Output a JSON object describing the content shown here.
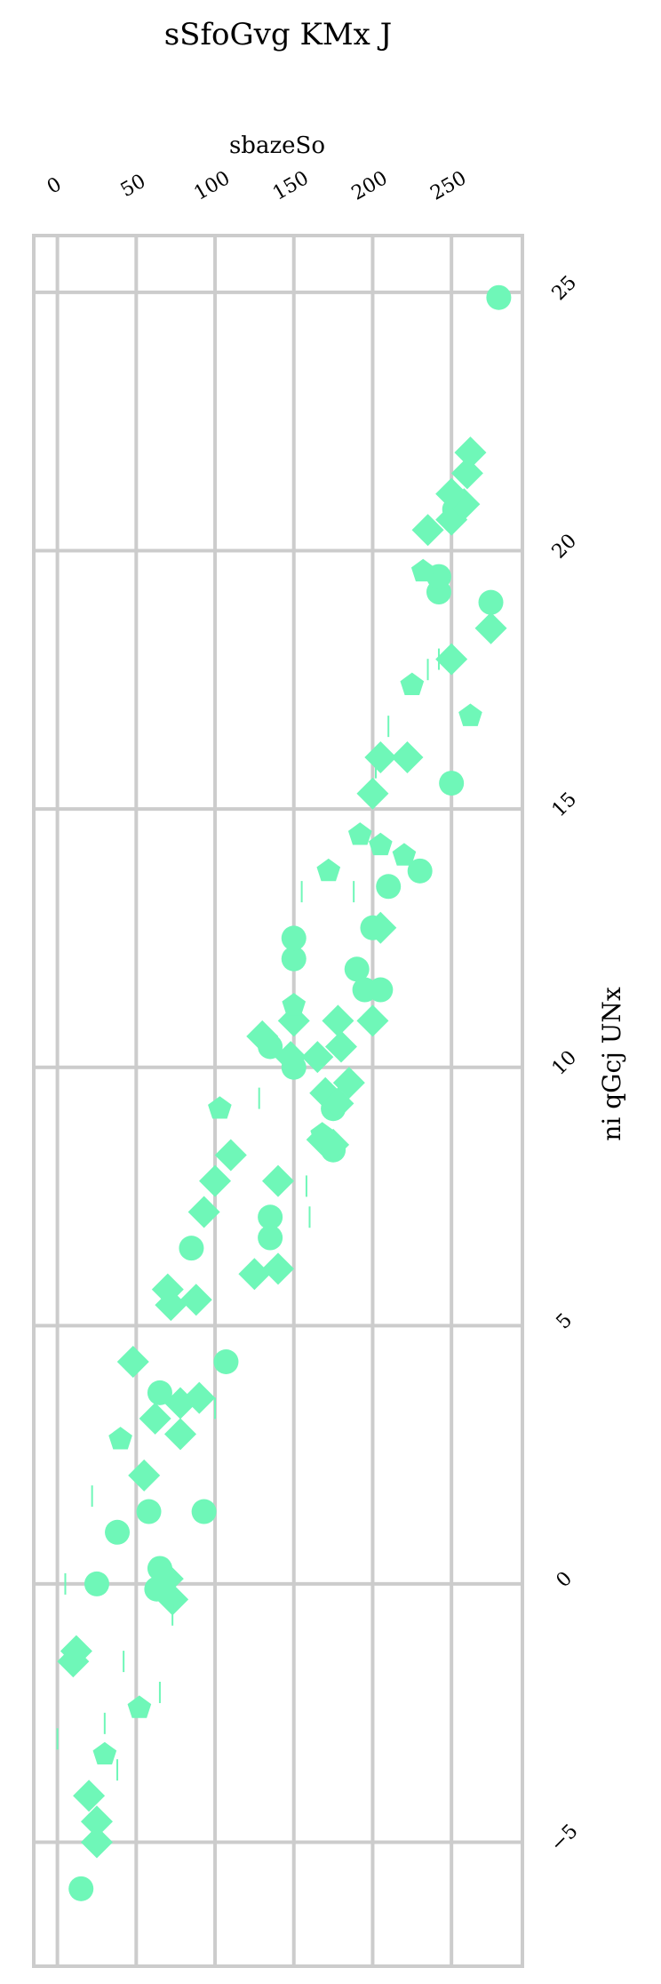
{
  "chart_data": {
    "type": "scatter",
    "orientation": "rotated-90",
    "title": "sSfoGvg KMx J",
    "xlabel": "sbazeSo",
    "ylabel": "ni qGcj UNx",
    "x_ticks": [
      "0",
      "50",
      "100",
      "150",
      "200",
      "250"
    ],
    "y_ticks": [
      "−5",
      "0",
      "5",
      "10",
      "15",
      "20",
      "25"
    ],
    "xlim": [
      -15,
      295
    ],
    "ylim": [
      -7.4,
      26.1
    ],
    "grid": true,
    "color": "#6ff7b8",
    "marker_color": "#6ff7b8",
    "series": [
      {
        "marker": "circle",
        "points": [
          [
            15,
            -5.9
          ],
          [
            25,
            0
          ],
          [
            38,
            1
          ],
          [
            58,
            1.4
          ],
          [
            93,
            1.4
          ],
          [
            65,
            0.3
          ],
          [
            63,
            -0.1
          ],
          [
            65,
            3.7
          ],
          [
            107,
            4.3
          ],
          [
            85,
            6.5
          ],
          [
            135,
            6.7
          ],
          [
            135,
            7.1
          ],
          [
            135,
            10.4
          ],
          [
            150,
            10
          ],
          [
            150,
            12.1
          ],
          [
            150,
            12.5
          ],
          [
            175,
            8.4
          ],
          [
            175,
            9.2
          ],
          [
            190,
            11.9
          ],
          [
            195,
            11.5
          ],
          [
            205,
            11.5
          ],
          [
            200,
            12.7
          ],
          [
            210,
            13.5
          ],
          [
            230,
            13.8
          ],
          [
            250,
            15.5
          ],
          [
            242,
            19.2
          ],
          [
            242,
            19.5
          ],
          [
            252,
            20.8
          ],
          [
            275,
            19
          ],
          [
            280,
            24.9
          ]
        ]
      },
      {
        "marker": "diamond",
        "points": [
          [
            10,
            -1.5
          ],
          [
            12,
            -1.3
          ],
          [
            20,
            -4.1
          ],
          [
            25,
            -4.6
          ],
          [
            25,
            -5
          ],
          [
            70,
            0.1
          ],
          [
            73,
            -0.3
          ],
          [
            48,
            4.3
          ],
          [
            62,
            3.2
          ],
          [
            78,
            2.9
          ],
          [
            55,
            2.1
          ],
          [
            78,
            3.5
          ],
          [
            90,
            3.6
          ],
          [
            72,
            5.4
          ],
          [
            70,
            5.7
          ],
          [
            88,
            5.5
          ],
          [
            93,
            7.2
          ],
          [
            100,
            7.8
          ],
          [
            110,
            8.3
          ],
          [
            125,
            6
          ],
          [
            140,
            7.8
          ],
          [
            140,
            6.1
          ],
          [
            130,
            10.6
          ],
          [
            148,
            10.2
          ],
          [
            150,
            10.9
          ],
          [
            165,
            10.2
          ],
          [
            170,
            9.5
          ],
          [
            178,
            10.9
          ],
          [
            180,
            10.4
          ],
          [
            178,
            9.3
          ],
          [
            185,
            9.7
          ],
          [
            168,
            8.6
          ],
          [
            175,
            8.5
          ],
          [
            200,
            10.9
          ],
          [
            205,
            12.7
          ],
          [
            200,
            15.3
          ],
          [
            205,
            16
          ],
          [
            222,
            16
          ],
          [
            250,
            17.9
          ],
          [
            235,
            20.4
          ],
          [
            250,
            20.6
          ],
          [
            258,
            20.9
          ],
          [
            250,
            21.1
          ],
          [
            260,
            21.5
          ],
          [
            262,
            21.9
          ],
          [
            275,
            18.5
          ]
        ]
      },
      {
        "marker": "pentagon",
        "points": [
          [
            30,
            -3.3
          ],
          [
            52,
            -2.4
          ],
          [
            40,
            2.8
          ],
          [
            103,
            9.2
          ],
          [
            150,
            11.2
          ],
          [
            168,
            8.7
          ],
          [
            172,
            13.8
          ],
          [
            192,
            14.5
          ],
          [
            205,
            14.3
          ],
          [
            220,
            14.1
          ],
          [
            225,
            17.4
          ],
          [
            232,
            19.6
          ],
          [
            262,
            16.8
          ]
        ]
      },
      {
        "marker": "vline",
        "points": [
          [
            5,
            0
          ],
          [
            0,
            -3
          ],
          [
            22,
            1.7
          ],
          [
            42,
            -1.5
          ],
          [
            30,
            -2.7
          ],
          [
            38,
            -3.6
          ],
          [
            65,
            -2.1
          ],
          [
            73,
            -0.6
          ],
          [
            100,
            3.4
          ],
          [
            128,
            9.4
          ],
          [
            160,
            7.1
          ],
          [
            158,
            7.7
          ],
          [
            155,
            13.4
          ],
          [
            188,
            13.4
          ],
          [
            202,
            15.8
          ],
          [
            210,
            16.6
          ],
          [
            235,
            17.7
          ],
          [
            242,
            17.9
          ]
        ]
      }
    ]
  }
}
